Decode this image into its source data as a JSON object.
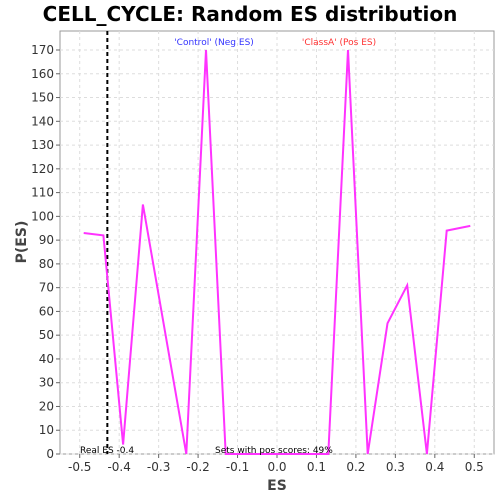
{
  "chart_data": {
    "type": "line",
    "title": "CELL_CYCLE: Random ES distribution",
    "xlabel": "ES",
    "ylabel": "P(ES)",
    "xlim": [
      -0.55,
      0.55
    ],
    "ylim": [
      0,
      178
    ],
    "x_ticks": [
      -0.5,
      -0.4,
      -0.3,
      -0.2,
      -0.1,
      0.0,
      0.1,
      0.2,
      0.3,
      0.4,
      0.5
    ],
    "x_tick_labels": [
      "-0.5",
      "-0.4",
      "-0.3",
      "-0.2",
      "-0.1",
      "0.0",
      "0.1",
      "0.2",
      "0.3",
      "0.4",
      "0.5"
    ],
    "y_ticks": [
      0,
      10,
      20,
      30,
      40,
      50,
      60,
      70,
      80,
      90,
      100,
      110,
      120,
      130,
      140,
      150,
      160,
      170
    ],
    "y_tick_labels": [
      "0",
      "10",
      "20",
      "30",
      "40",
      "50",
      "60",
      "70",
      "80",
      "90",
      "100",
      "110",
      "120",
      "130",
      "140",
      "150",
      "160",
      "170"
    ],
    "grid": true,
    "series": [
      {
        "color": "#ff33ff",
        "x": [
          -0.49,
          -0.44,
          -0.39,
          -0.34,
          -0.23,
          -0.18,
          -0.13,
          0.13,
          0.18,
          0.23,
          0.28,
          0.33,
          0.38,
          0.43,
          0.49
        ],
        "y": [
          93,
          92,
          4,
          105,
          0,
          170,
          0,
          0,
          170,
          0,
          55,
          71,
          0,
          94,
          96
        ]
      }
    ],
    "real_es": -0.43,
    "annotations": {
      "neg_label": "'Control' (Neg ES)",
      "neg_color": "#3333ff",
      "pos_label": "'ClassA' (Pos ES)",
      "pos_color": "#ff3333",
      "real_es_label": "Real ES -0.4",
      "pos_scores_label": "Sets with pos scores: 49%"
    }
  }
}
